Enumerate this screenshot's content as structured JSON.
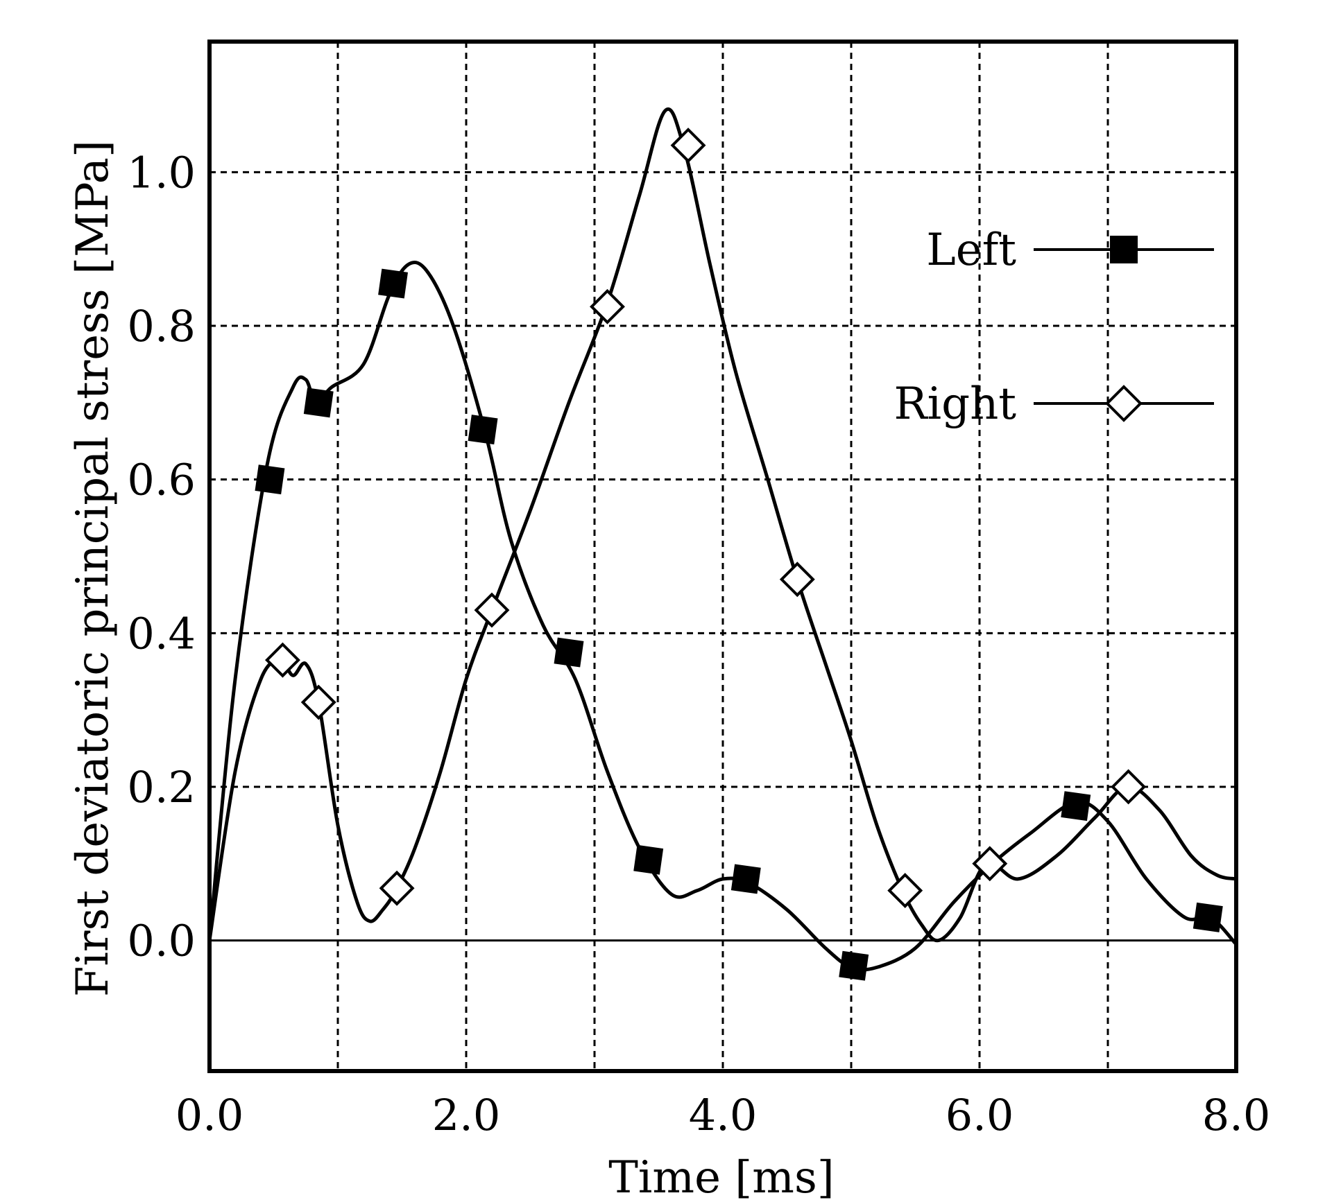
{
  "chart_data": {
    "type": "line",
    "title": "",
    "xlabel": "Time [ms]",
    "ylabel": "First deviatoric principal stress [MPa]",
    "xlim": [
      0.0,
      8.0
    ],
    "ylim": [
      -0.17,
      1.17
    ],
    "xticks": [
      0,
      2,
      4,
      6,
      8
    ],
    "xtick_labels": [
      "0.0",
      "2.0",
      "4.0",
      "6.0",
      "8.0"
    ],
    "yticks": [
      0.0,
      0.2,
      0.4,
      0.6,
      0.8,
      1.0
    ],
    "ytick_labels": [
      "0.0",
      "0.2",
      "0.4",
      "0.6",
      "0.8",
      "1.0"
    ],
    "grid": true,
    "legend_position": "top-right",
    "series": [
      {
        "name": "Left",
        "marker": "filled-square",
        "curve": [
          [
            0.0,
            0.0
          ],
          [
            0.2,
            0.34
          ],
          [
            0.45,
            0.62
          ],
          [
            0.65,
            0.72
          ],
          [
            0.75,
            0.73
          ],
          [
            0.83,
            0.7
          ],
          [
            0.95,
            0.72
          ],
          [
            1.2,
            0.75
          ],
          [
            1.4,
            0.84
          ],
          [
            1.55,
            0.88
          ],
          [
            1.7,
            0.87
          ],
          [
            1.9,
            0.8
          ],
          [
            2.15,
            0.66
          ],
          [
            2.35,
            0.52
          ],
          [
            2.6,
            0.41
          ],
          [
            2.85,
            0.34
          ],
          [
            3.1,
            0.22
          ],
          [
            3.35,
            0.12
          ],
          [
            3.6,
            0.06
          ],
          [
            3.8,
            0.065
          ],
          [
            4.0,
            0.08
          ],
          [
            4.2,
            0.075
          ],
          [
            4.5,
            0.04
          ],
          [
            4.8,
            -0.01
          ],
          [
            5.0,
            -0.035
          ],
          [
            5.2,
            -0.035
          ],
          [
            5.5,
            -0.01
          ],
          [
            5.8,
            0.05
          ],
          [
            6.1,
            0.1
          ],
          [
            6.4,
            0.14
          ],
          [
            6.75,
            0.18
          ],
          [
            7.0,
            0.155
          ],
          [
            7.3,
            0.08
          ],
          [
            7.6,
            0.03
          ],
          [
            7.8,
            0.03
          ],
          [
            8.0,
            -0.005
          ]
        ],
        "markers": [
          [
            0.47,
            0.6
          ],
          [
            0.85,
            0.7
          ],
          [
            1.43,
            0.855
          ],
          [
            2.13,
            0.665
          ],
          [
            2.8,
            0.375
          ],
          [
            3.42,
            0.105
          ],
          [
            4.18,
            0.08
          ],
          [
            5.02,
            -0.033
          ],
          [
            6.75,
            0.175
          ],
          [
            7.78,
            0.03
          ]
        ]
      },
      {
        "name": "Right",
        "marker": "open-diamond",
        "curve": [
          [
            0.0,
            0.0
          ],
          [
            0.2,
            0.22
          ],
          [
            0.4,
            0.34
          ],
          [
            0.55,
            0.365
          ],
          [
            0.65,
            0.345
          ],
          [
            0.75,
            0.36
          ],
          [
            0.85,
            0.31
          ],
          [
            1.0,
            0.15
          ],
          [
            1.15,
            0.05
          ],
          [
            1.25,
            0.025
          ],
          [
            1.35,
            0.04
          ],
          [
            1.45,
            0.065
          ],
          [
            1.6,
            0.12
          ],
          [
            1.8,
            0.22
          ],
          [
            2.0,
            0.34
          ],
          [
            2.2,
            0.43
          ],
          [
            2.5,
            0.56
          ],
          [
            2.8,
            0.7
          ],
          [
            3.1,
            0.83
          ],
          [
            3.35,
            0.97
          ],
          [
            3.55,
            1.08
          ],
          [
            3.7,
            1.03
          ],
          [
            3.9,
            0.88
          ],
          [
            4.1,
            0.74
          ],
          [
            4.35,
            0.6
          ],
          [
            4.58,
            0.47
          ],
          [
            4.8,
            0.36
          ],
          [
            5.0,
            0.26
          ],
          [
            5.2,
            0.15
          ],
          [
            5.4,
            0.065
          ],
          [
            5.55,
            0.02
          ],
          [
            5.68,
            0.0
          ],
          [
            5.85,
            0.03
          ],
          [
            6.05,
            0.1
          ],
          [
            6.3,
            0.08
          ],
          [
            6.6,
            0.11
          ],
          [
            6.9,
            0.16
          ],
          [
            7.15,
            0.2
          ],
          [
            7.4,
            0.17
          ],
          [
            7.65,
            0.11
          ],
          [
            7.85,
            0.085
          ],
          [
            8.0,
            0.08
          ]
        ],
        "markers": [
          [
            0.57,
            0.365
          ],
          [
            0.85,
            0.31
          ],
          [
            1.46,
            0.068
          ],
          [
            2.2,
            0.43
          ],
          [
            3.1,
            0.825
          ],
          [
            3.73,
            1.035
          ],
          [
            4.58,
            0.47
          ],
          [
            5.42,
            0.065
          ],
          [
            6.08,
            0.1
          ],
          [
            7.16,
            0.2
          ]
        ]
      }
    ],
    "legend": [
      {
        "label": "Left",
        "marker": "filled-square"
      },
      {
        "label": "Right",
        "marker": "open-diamond"
      }
    ]
  }
}
